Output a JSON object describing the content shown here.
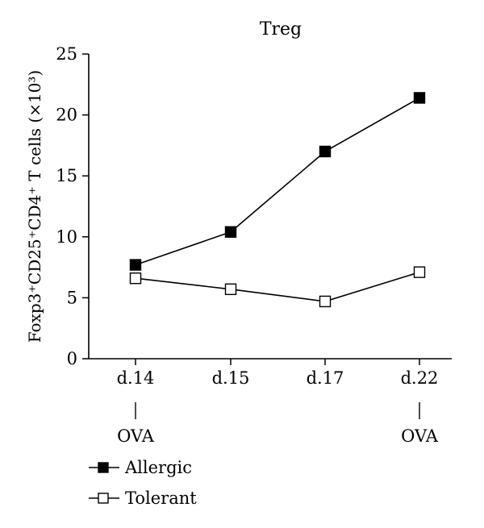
{
  "chart_data": {
    "type": "line",
    "title": "Treg",
    "ylabel": "Foxp3⁺CD25⁺CD4⁺ T cells (×10³)",
    "xlabel": "",
    "categories": [
      "d.14",
      "d.15",
      "d.17",
      "d.22"
    ],
    "ylim": [
      0,
      25
    ],
    "yticks": [
      0,
      5,
      10,
      15,
      20,
      25
    ],
    "grid": false,
    "legend_position": "bottom-left",
    "series": [
      {
        "name": "Allergic",
        "marker": "filled-square",
        "color": "#000000",
        "values": [
          7.7,
          10.4,
          17.0,
          21.4
        ]
      },
      {
        "name": "Tolerant",
        "marker": "open-square",
        "color": "#000000",
        "values": [
          6.6,
          5.7,
          4.7,
          7.1
        ]
      }
    ],
    "annotations": [
      {
        "category": "d.14",
        "text": "OVA"
      },
      {
        "category": "d.22",
        "text": "OVA"
      }
    ]
  }
}
